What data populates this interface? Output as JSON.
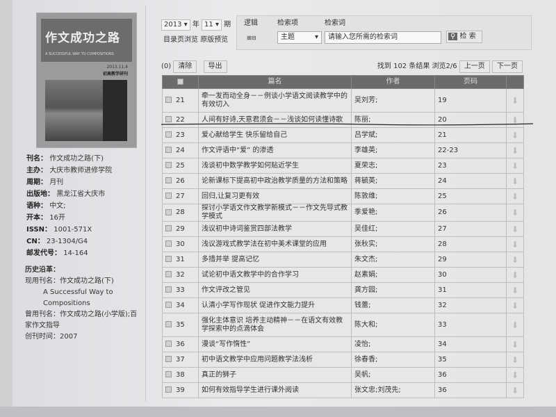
{
  "cover": {
    "title": "作文成功之路",
    "subtitle": "A SUCCESSFUL WAY TO COMPOSITIONS",
    "issue": "2013.11.4",
    "edition": "初高教学研刊"
  },
  "info": [
    {
      "k": "刊名：",
      "v": "作文成功之路(下)"
    },
    {
      "k": "主办：",
      "v": "大庆市教师进修学院"
    },
    {
      "k": "周期：",
      "v": "月刊"
    },
    {
      "k": "出版地：",
      "v": "黑龙江省大庆市"
    },
    {
      "k": "语种：",
      "v": "中文;"
    },
    {
      "k": "开本：",
      "v": "16开"
    },
    {
      "k": "ISSN：",
      "v": "1001-571X"
    },
    {
      "k": "CN：",
      "v": "23-1304/G4"
    },
    {
      "k": "邮发代号：",
      "v": "14-164"
    }
  ],
  "history": {
    "heading": "历史沿革：",
    "current": "现用刊名：作文成功之路(下)",
    "english": "A Successful Way to Compositions",
    "former": "曾用刊名：作文成功之路(小学版);百家作文指导",
    "founded": "创刊时间：2007"
  },
  "issue_select": {
    "year": "2013",
    "year_label": "年",
    "period": "11",
    "period_label": "期"
  },
  "links": {
    "toc": "目录页浏览",
    "original": "原版预览"
  },
  "search": {
    "logic_label": "逻辑",
    "field_label": "检索项",
    "field_value": "主题",
    "term_label": "检索词",
    "term_placeholder": "请输入您所需的检索词",
    "button": "检 索"
  },
  "toolbar": {
    "count": "(0)",
    "clear": "清除",
    "export": "导出",
    "results": "找到 102 条结果 浏览2/6",
    "prev": "上一页",
    "next": "下一页"
  },
  "table": {
    "headers": [
      "篇名",
      "作者",
      "页码"
    ],
    "rows": [
      {
        "n": "21",
        "title": "牵一发而动全身－－例谈小学语文阅读教学中的有效切入",
        "author": "吴刘芳;",
        "page": "19"
      },
      {
        "n": "22",
        "title": "人间有好诗,天意君须会－－浅谈如何读懂诗歌",
        "author": "陈丽;",
        "page": "20"
      },
      {
        "n": "23",
        "title": "爱心献给学生 快乐留给自己",
        "author": "吕学斌;",
        "page": "21"
      },
      {
        "n": "24",
        "title": "作文评语中“爱” 的渗透",
        "author": "李雄英;",
        "page": "22-23"
      },
      {
        "n": "25",
        "title": "浅谈初中数学教学如何贴近学生",
        "author": "夏荣志;",
        "page": "23"
      },
      {
        "n": "26",
        "title": "论新课标下提高初中政治教学质量的方法和策略",
        "author": "蒋毓英;",
        "page": "24"
      },
      {
        "n": "27",
        "title": "回归,让复习更有效",
        "author": "陈敦维;",
        "page": "25"
      },
      {
        "n": "28",
        "title": "探讨小学语文作文教学新模式－－作文先导式教学模式",
        "author": "季爱艳;",
        "page": "26"
      },
      {
        "n": "29",
        "title": "浅议初中诗词鉴赏四部法教学",
        "author": "吴佳红;",
        "page": "27"
      },
      {
        "n": "30",
        "title": "浅议游戏式教学法在初中美术课堂的应用",
        "author": "张秋实;",
        "page": "28"
      },
      {
        "n": "31",
        "title": "多措并举 提高记忆",
        "author": "朱文杰;",
        "page": "29"
      },
      {
        "n": "32",
        "title": "试论初中语文教学中的合作学习",
        "author": "赵素娟;",
        "page": "30"
      },
      {
        "n": "33",
        "title": "作文评改之管见",
        "author": "龚方园;",
        "page": "31"
      },
      {
        "n": "34",
        "title": "认清小学写作现状 促进作文能力提升",
        "author": "钱蕾;",
        "page": "32"
      },
      {
        "n": "35",
        "title": "强化主体意识 培养主动精神－－在语文有效教学探索中的点滴体会",
        "author": "陈大和;",
        "page": "33"
      },
      {
        "n": "36",
        "title": "漫谈“写作惰性”",
        "author": "凌怡;",
        "page": "34"
      },
      {
        "n": "37",
        "title": "初中语文教学中应用问题教学法浅析",
        "author": "徐春香;",
        "page": "35"
      },
      {
        "n": "38",
        "title": "真正的狮子",
        "author": "吴帆;",
        "page": "36"
      },
      {
        "n": "39",
        "title": "如何有效指导学生进行课外阅读",
        "author": "张文忠;刘茂先;",
        "page": "36"
      }
    ]
  }
}
